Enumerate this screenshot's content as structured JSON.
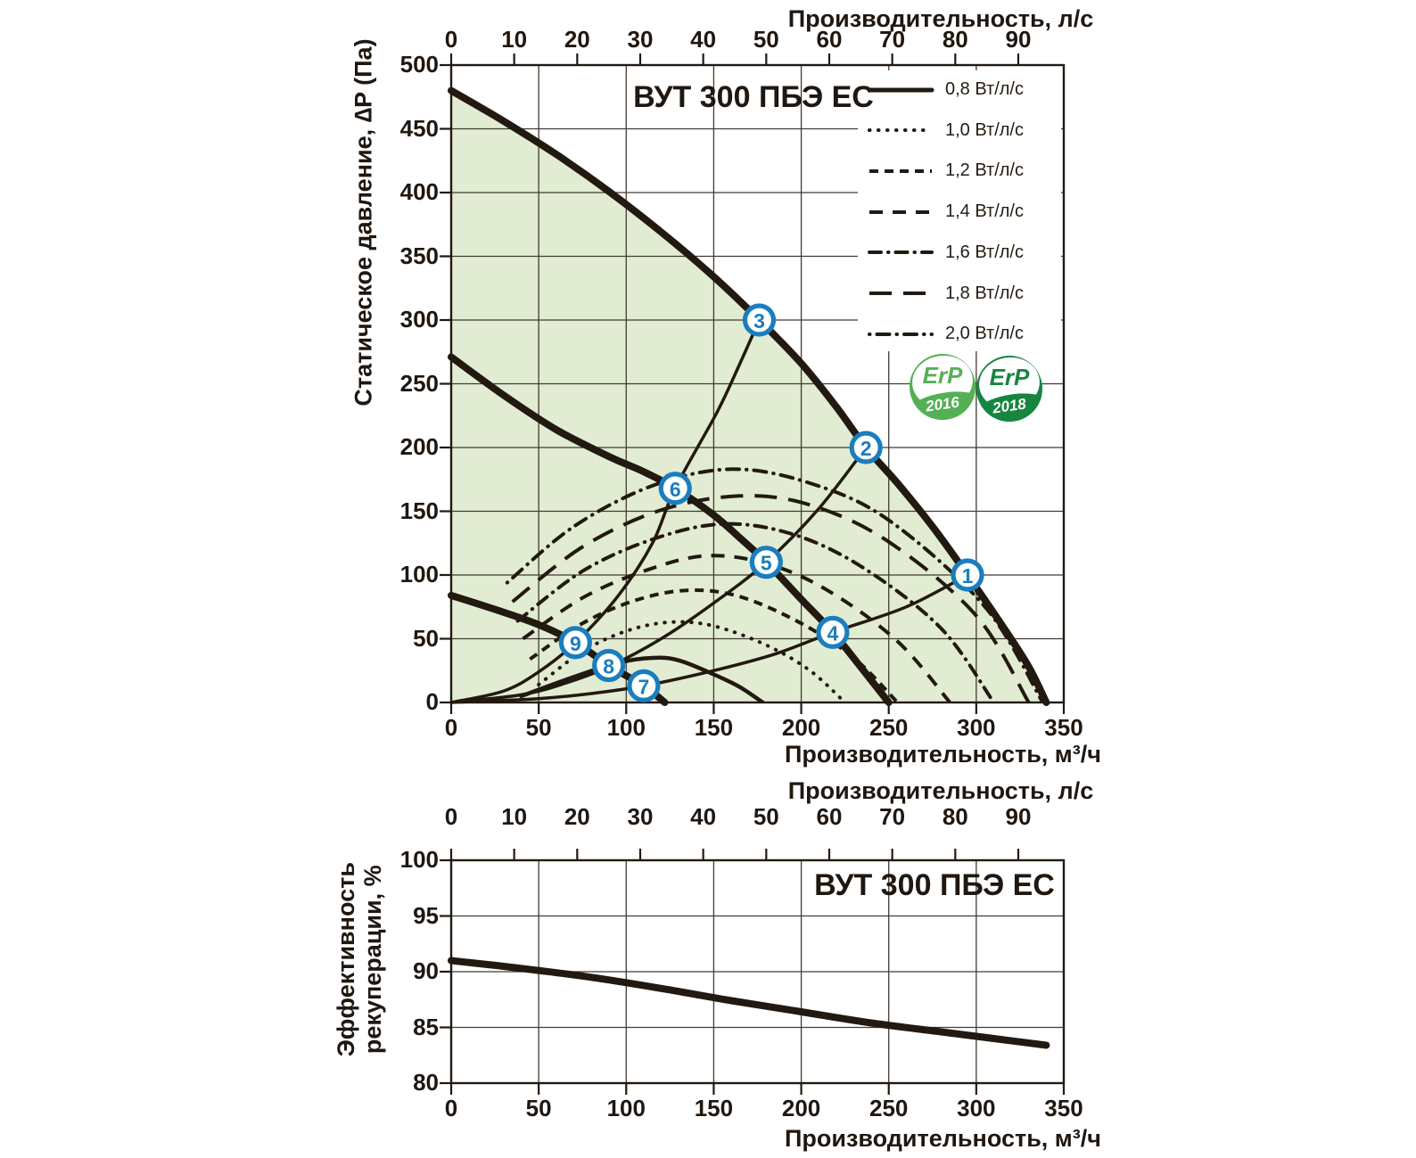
{
  "colors": {
    "curve": "#221910",
    "grid": "#413b33",
    "envelope_fill": "#e2ecd3",
    "marker_blue": "#1a7dbf",
    "text": "#1f1710",
    "erp_green_2016": "#55b055",
    "erp_green_2018": "#178540"
  },
  "erp_badges": [
    {
      "text": "ErP",
      "year": "2016"
    },
    {
      "text": "ErP",
      "year": "2018"
    }
  ],
  "chart_data": [
    {
      "type": "line",
      "title": "ВУТ 300 ПБЭ ЕС",
      "xlabel": "Производительность, м³/ч",
      "xlabel_top": "Производительность, л/с",
      "ylabel": "Статическое давление, ∆P (Па)",
      "xlim": [
        0,
        350
      ],
      "ylim": [
        0,
        500
      ],
      "x_ticks": [
        0,
        50,
        100,
        150,
        200,
        250,
        300,
        350
      ],
      "y_ticks": [
        0,
        50,
        100,
        150,
        200,
        250,
        300,
        350,
        400,
        450,
        500
      ],
      "top_ticks_lps": [
        0,
        10,
        20,
        30,
        40,
        50,
        60,
        70,
        80,
        90
      ],
      "lps_to_m3h": 3.6,
      "grid": true,
      "legend_position": "top-right",
      "fan_curves": [
        {
          "name": "speed-high",
          "points": [
            [
              0,
              480
            ],
            [
              30,
              456
            ],
            [
              60,
              430
            ],
            [
              90,
              401
            ],
            [
              120,
              369
            ],
            [
              150,
              334
            ],
            [
              176,
              300
            ],
            [
              200,
              266
            ],
            [
              220,
              232
            ],
            [
              237,
              200
            ],
            [
              255,
              172
            ],
            [
              275,
              138
            ],
            [
              295,
              100
            ],
            [
              315,
              60
            ],
            [
              330,
              28
            ],
            [
              340,
              0
            ]
          ]
        },
        {
          "name": "speed-mid",
          "points": [
            [
              0,
              271
            ],
            [
              30,
              241
            ],
            [
              60,
              214
            ],
            [
              90,
              193
            ],
            [
              110,
              181
            ],
            [
              128,
              168
            ],
            [
              150,
              147
            ],
            [
              165,
              129
            ],
            [
              180,
              110
            ],
            [
              200,
              81
            ],
            [
              218,
              55
            ],
            [
              235,
              26
            ],
            [
              250,
              0
            ]
          ]
        },
        {
          "name": "speed-low",
          "points": [
            [
              0,
              84
            ],
            [
              25,
              73
            ],
            [
              50,
              61
            ],
            [
              71,
              47
            ],
            [
              90,
              29
            ],
            [
              110,
              13
            ],
            [
              122,
              0
            ]
          ]
        }
      ],
      "system_curves": [
        {
          "name": "system-1-4-7",
          "points": [
            [
              0,
              0
            ],
            [
              50,
              3
            ],
            [
              80,
              7
            ],
            [
              110,
              13
            ],
            [
              150,
              25
            ],
            [
              185,
              38
            ],
            [
              218,
              55
            ],
            [
              260,
              75
            ],
            [
              295,
              100
            ]
          ]
        },
        {
          "name": "system-2-5-8",
          "points": [
            [
              0,
              0
            ],
            [
              40,
              6
            ],
            [
              65,
              15
            ],
            [
              90,
              28
            ],
            [
              120,
              50
            ],
            [
              150,
              78
            ],
            [
              180,
              110
            ],
            [
              210,
              152
            ],
            [
              237,
              200
            ]
          ]
        },
        {
          "name": "system-3-6-9",
          "points": [
            [
              0,
              0
            ],
            [
              30,
              9
            ],
            [
              50,
              24
            ],
            [
              71,
              47
            ],
            [
              95,
              83
            ],
            [
              115,
              125
            ],
            [
              128,
              168
            ],
            [
              152,
              228
            ],
            [
              165,
              266
            ],
            [
              176,
              300
            ]
          ]
        }
      ],
      "power_curves": [
        {
          "label": "0,8 Вт/л/с",
          "style": "solid",
          "points": [
            [
              40,
              5
            ],
            [
              70,
              20
            ],
            [
              95,
              31
            ],
            [
              115,
              35
            ],
            [
              130,
              33
            ],
            [
              150,
              22
            ],
            [
              165,
              12
            ],
            [
              178,
              0
            ]
          ]
        },
        {
          "label": "1,0 Вт/л/с",
          "style": "dotted",
          "points": [
            [
              50,
              14
            ],
            [
              75,
              40
            ],
            [
              100,
              56
            ],
            [
              125,
              63
            ],
            [
              150,
              60
            ],
            [
              180,
              45
            ],
            [
              205,
              25
            ],
            [
              225,
              0
            ]
          ]
        },
        {
          "label": "1,2 Вт/л/с",
          "style": "dash-s",
          "points": [
            [
              45,
              34
            ],
            [
              75,
              62
            ],
            [
              105,
              80
            ],
            [
              135,
              88
            ],
            [
              165,
              83
            ],
            [
              200,
              62
            ],
            [
              230,
              35
            ],
            [
              255,
              0
            ]
          ]
        },
        {
          "label": "1,4 Вт/л/с",
          "style": "dash-m",
          "points": [
            [
              41,
              50
            ],
            [
              75,
              82
            ],
            [
              110,
              103
            ],
            [
              145,
              115
            ],
            [
              180,
              109
            ],
            [
              215,
              88
            ],
            [
              255,
              48
            ],
            [
              285,
              0
            ]
          ]
        },
        {
          "label": "1,6 Вт/л/с",
          "style": "dashdot",
          "points": [
            [
              38,
              64
            ],
            [
              75,
              103
            ],
            [
              115,
              128
            ],
            [
              155,
              140
            ],
            [
              195,
              132
            ],
            [
              235,
              106
            ],
            [
              280,
              58
            ],
            [
              310,
              0
            ]
          ]
        },
        {
          "label": "1,8 Вт/л/с",
          "style": "dash-l",
          "points": [
            [
              35,
              79
            ],
            [
              75,
              122
            ],
            [
              120,
              151
            ],
            [
              165,
              162
            ],
            [
              205,
              155
            ],
            [
              250,
              126
            ],
            [
              300,
              68
            ],
            [
              330,
              0
            ]
          ]
        },
        {
          "label": "2,0 Вт/л/с",
          "style": "dotdash",
          "points": [
            [
              32,
              94
            ],
            [
              70,
              138
            ],
            [
              115,
              170
            ],
            [
              160,
              183
            ],
            [
              205,
              172
            ],
            [
              250,
              143
            ],
            [
              305,
              75
            ],
            [
              338,
              0
            ]
          ]
        }
      ],
      "operating_points": [
        {
          "n": "1",
          "x": 295,
          "y": 100
        },
        {
          "n": "2",
          "x": 237,
          "y": 200
        },
        {
          "n": "3",
          "x": 176,
          "y": 300
        },
        {
          "n": "4",
          "x": 218,
          "y": 55
        },
        {
          "n": "5",
          "x": 180,
          "y": 110
        },
        {
          "n": "6",
          "x": 128,
          "y": 168
        },
        {
          "n": "7",
          "x": 110,
          "y": 13
        },
        {
          "n": "8",
          "x": 90,
          "y": 29
        },
        {
          "n": "9",
          "x": 71,
          "y": 47
        }
      ]
    },
    {
      "type": "line",
      "title": "ВУТ 300 ПБЭ ЕС",
      "xlabel": "Производительность, м³/ч",
      "xlabel_top": "Производительность, л/с",
      "ylabel": "Эффективность рекуперации, %",
      "ylabel_lines": [
        "Эффективность",
        "рекуперации, %"
      ],
      "xlim": [
        0,
        350
      ],
      "ylim": [
        80,
        100
      ],
      "x_ticks": [
        0,
        50,
        100,
        150,
        200,
        250,
        300,
        350
      ],
      "y_ticks": [
        80,
        85,
        90,
        95,
        100
      ],
      "top_ticks_lps": [
        0,
        10,
        20,
        30,
        40,
        50,
        60,
        70,
        80,
        90
      ],
      "grid": true,
      "series": [
        {
          "name": "эффективность рекуперации",
          "points": [
            [
              0,
              91
            ],
            [
              40,
              90.3
            ],
            [
              80,
              89.5
            ],
            [
              120,
              88.5
            ],
            [
              160,
              87.4
            ],
            [
              200,
              86.4
            ],
            [
              240,
              85.4
            ],
            [
              280,
              84.6
            ],
            [
              310,
              84.0
            ],
            [
              340,
              83.4
            ]
          ]
        }
      ]
    }
  ]
}
